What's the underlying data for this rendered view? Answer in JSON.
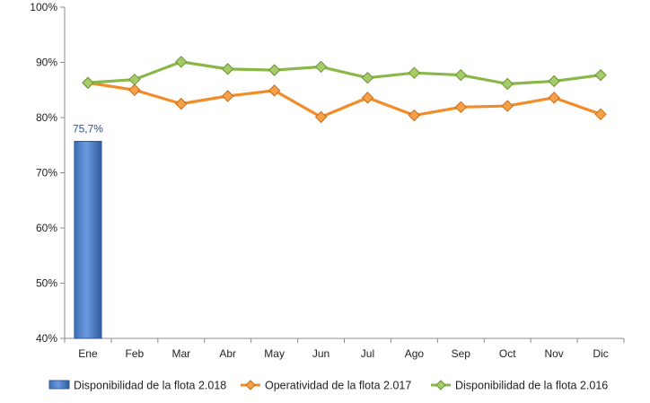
{
  "chart_data": {
    "type": "bar+line",
    "categories": [
      "Ene",
      "Feb",
      "Mar",
      "Abr",
      "May",
      "Jun",
      "Jul",
      "Ago",
      "Sep",
      "Oct",
      "Nov",
      "Dic"
    ],
    "ylim": [
      40,
      100
    ],
    "yticks": [
      "40%",
      "50%",
      "60%",
      "70%",
      "80%",
      "90%",
      "100%"
    ],
    "ytick_values": [
      40,
      50,
      60,
      70,
      80,
      90,
      100
    ],
    "grid": false,
    "legend_placement": "bottom",
    "series": [
      {
        "name": "Disponibilidad de la flota 2.018",
        "kind": "bar",
        "color": "#4a7ec4",
        "values": [
          75.7,
          null,
          null,
          null,
          null,
          null,
          null,
          null,
          null,
          null,
          null,
          null
        ],
        "data_labels": [
          "75,7%",
          null,
          null,
          null,
          null,
          null,
          null,
          null,
          null,
          null,
          null,
          null
        ]
      },
      {
        "name": "Operatividad de la flota 2.017",
        "kind": "line",
        "color": "#f28c28",
        "values": [
          86.3,
          85.0,
          82.5,
          83.9,
          84.9,
          80.1,
          83.6,
          80.4,
          81.9,
          82.1,
          83.6,
          80.6
        ]
      },
      {
        "name": "Disponibilidad de la flota 2.016",
        "kind": "line",
        "color": "#8ab848",
        "values": [
          86.3,
          86.9,
          90.1,
          88.8,
          88.6,
          89.2,
          87.2,
          88.1,
          87.7,
          86.1,
          86.6,
          87.7
        ]
      }
    ]
  }
}
